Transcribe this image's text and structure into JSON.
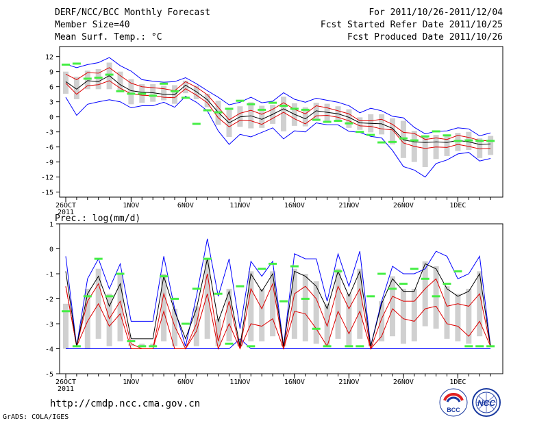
{
  "header": {
    "title": "DERF/NCC/BCC Monthly Forecast",
    "member_size": "Member Size=40",
    "variable": "Mean Surf. Temp.: °C",
    "period": "For 2011/10/26-2011/12/04",
    "fcst_started": "Fcst Started Refer Date 2011/10/25",
    "fcst_produced": "Fcst Produced Date 2011/10/26"
  },
  "footer": {
    "url": "http://cmdp.ncc.cma.gov.cn",
    "grads": "GrADS: COLA/IGES"
  },
  "logos": {
    "bcc_text": "BCC",
    "ncc_text": "NCC"
  },
  "colors": {
    "max_line": "#0000ff",
    "min_line": "#0000ff",
    "mean_line": "#000000",
    "spread_line": "#dd0000",
    "obs_marker": "#44ee44",
    "box": "#d0d0d0"
  },
  "chart_data": [
    {
      "type": "line",
      "title": "Mean Surf. Temp.: °C",
      "x_labels": [
        "26OCT",
        "1NOV",
        "6NOV",
        "11NOV",
        "16NOV",
        "21NOV",
        "26NOV",
        "1DEC"
      ],
      "x_label_days": [
        0,
        6,
        11,
        16,
        21,
        26,
        31,
        36
      ],
      "x_sublabel": "2011",
      "ylim": [
        -16,
        14
      ],
      "yticks": [
        -15,
        -12,
        -9,
        -6,
        -3,
        0,
        3,
        6,
        9,
        12
      ],
      "x": [
        0,
        1,
        2,
        3,
        4,
        5,
        6,
        7,
        8,
        9,
        10,
        11,
        12,
        13,
        14,
        15,
        16,
        17,
        18,
        19,
        20,
        21,
        22,
        23,
        24,
        25,
        26,
        27,
        28,
        29,
        30,
        31,
        32,
        33,
        34,
        35,
        36,
        37,
        38,
        39
      ],
      "series": [
        {
          "name": "max",
          "values": [
            10.5,
            9.8,
            10.4,
            10.8,
            11.8,
            10.2,
            9.1,
            7.4,
            7.1,
            6.9,
            7.0,
            7.8,
            6.6,
            5.2,
            3.9,
            2.4,
            2.9,
            3.9,
            2.8,
            3.1,
            4.8,
            3.5,
            2.9,
            3.7,
            3.3,
            2.9,
            2.2,
            0.8,
            1.7,
            1.2,
            0.1,
            -0.2,
            -2.1,
            -3.4,
            -2.9,
            -2.8,
            -2.2,
            -2.4,
            -3.8,
            -3.2
          ]
        },
        {
          "name": "spread_high",
          "values": [
            8.5,
            7.4,
            8.8,
            8.7,
            9.8,
            8.2,
            6.7,
            6.0,
            5.8,
            5.6,
            5.2,
            7.0,
            5.9,
            4.4,
            1.9,
            -0.6,
            0.7,
            1.3,
            0.5,
            1.5,
            2.8,
            1.5,
            0.6,
            2.2,
            1.8,
            1.2,
            0.6,
            -0.8,
            -0.8,
            -0.5,
            -1.5,
            -3.1,
            -3.3,
            -4.5,
            -4.2,
            -4.5,
            -3.7,
            -4.1,
            -4.7,
            -4.8
          ]
        },
        {
          "name": "mean",
          "values": [
            7.0,
            5.5,
            7.2,
            7.0,
            8.2,
            6.4,
            5.2,
            4.9,
            4.8,
            4.5,
            4.4,
            6.3,
            5.0,
            3.4,
            0.9,
            -1.2,
            0.0,
            0.2,
            -0.5,
            0.5,
            1.6,
            0.5,
            -0.4,
            1.2,
            0.9,
            0.6,
            -0.1,
            -1.2,
            -1.3,
            -1.4,
            -2.3,
            -4.6,
            -5.0,
            -5.1,
            -5.0,
            -5.1,
            -4.7,
            -5.0,
            -5.5,
            -5.4
          ]
        },
        {
          "name": "spread_low",
          "values": [
            6.7,
            4.5,
            6.2,
            6.4,
            7.2,
            5.7,
            4.6,
            4.3,
            4.2,
            3.9,
            3.8,
            5.6,
            4.3,
            2.8,
            -0.2,
            -2.0,
            -0.7,
            -0.8,
            -1.5,
            -0.3,
            0.9,
            -0.4,
            -1.4,
            0.2,
            0.3,
            -0.1,
            -0.8,
            -1.8,
            -1.9,
            -2.4,
            -2.6,
            -5.2,
            -5.9,
            -6.3,
            -6.0,
            -6.1,
            -5.5,
            -5.9,
            -6.4,
            -6.3
          ]
        },
        {
          "name": "min",
          "values": [
            3.9,
            0.3,
            2.5,
            3.0,
            3.4,
            3.0,
            1.8,
            2.2,
            2.2,
            2.9,
            1.9,
            4.1,
            2.9,
            1.2,
            -2.8,
            -5.5,
            -3.5,
            -4.0,
            -3.1,
            -2.2,
            -4.4,
            -2.8,
            -3.0,
            -1.2,
            -1.6,
            -1.6,
            -2.9,
            -3.1,
            -3.9,
            -4.2,
            -6.7,
            -9.9,
            -10.6,
            -12.0,
            -9.3,
            -8.6,
            -7.4,
            -7.1,
            -8.8,
            -8.3
          ]
        },
        {
          "name": "box_top",
          "values": [
            9.0,
            8.0,
            9.2,
            9.5,
            10.8,
            9.0,
            7.5,
            6.5,
            6.5,
            6.2,
            6.3,
            7.2,
            6.2,
            4.6,
            3.2,
            1.6,
            2.1,
            2.9,
            2.2,
            2.4,
            4.0,
            2.7,
            1.9,
            2.8,
            2.6,
            2.1,
            1.5,
            -0.1,
            0.5,
            0.5,
            -0.3,
            -0.8,
            -2.8,
            -4.0,
            -3.6,
            -3.5,
            -3.2,
            -3.0,
            -4.3,
            -3.8
          ]
        },
        {
          "name": "box_bottom",
          "values": [
            4.6,
            3.5,
            5.5,
            5.5,
            5.5,
            4.9,
            2.5,
            2.8,
            3.0,
            3.3,
            2.6,
            4.7,
            3.5,
            1.9,
            -1.6,
            -4.0,
            -2.0,
            -2.3,
            -2.2,
            -1.4,
            -2.9,
            -1.8,
            -1.9,
            -0.5,
            -0.8,
            -0.9,
            -2.2,
            -2.6,
            -3.1,
            -3.5,
            -5.5,
            -8.2,
            -9.0,
            -10.0,
            -8.4,
            -7.8,
            -6.8,
            -6.6,
            -8.2,
            -7.6
          ]
        },
        {
          "name": "observed",
          "values": [
            10.4,
            10.6,
            7.6,
            7.8,
            8.4,
            5.1,
            4.6,
            4.6,
            4.2,
            6.6,
            5.1,
            3.8,
            -1.4,
            1.3,
            0.9,
            1.6,
            3.2,
            2.5,
            1.4,
            2.8,
            2.2,
            1.6,
            1.4,
            -0.6,
            -1.0,
            -0.8,
            -1.3,
            -3.0,
            -3.6,
            -5.1,
            -5.0,
            -4.3,
            -4.7,
            -3.9,
            -2.9,
            -3.7,
            -4.8,
            -4.7,
            -4.8,
            -4.8
          ]
        }
      ]
    },
    {
      "type": "line",
      "title": "Prec.: log(mm/d)",
      "x_labels": [
        "26OCT",
        "1NOV",
        "6NOV",
        "11NOV",
        "16NOV",
        "21NOV",
        "26NOV",
        "1DEC"
      ],
      "x_label_days": [
        0,
        6,
        11,
        16,
        21,
        26,
        31,
        36
      ],
      "x_sublabel": "2011",
      "ylim": [
        -5,
        1
      ],
      "yticks": [
        -5,
        -4,
        -3,
        -2,
        -1,
        0,
        1
      ],
      "x": [
        0,
        1,
        2,
        3,
        4,
        5,
        6,
        7,
        8,
        9,
        10,
        11,
        12,
        13,
        14,
        15,
        16,
        17,
        18,
        19,
        20,
        21,
        22,
        23,
        24,
        25,
        26,
        27,
        28,
        29,
        30,
        31,
        32,
        33,
        34,
        35,
        36,
        37,
        38,
        39
      ],
      "series": [
        {
          "name": "max",
          "values": [
            -0.3,
            -3.9,
            -1.2,
            -0.4,
            -1.6,
            -0.6,
            -2.9,
            -2.9,
            -2.9,
            -0.3,
            -2.4,
            -3.9,
            -1.9,
            0.4,
            -1.9,
            -0.4,
            -3.2,
            -0.5,
            -1.1,
            -0.5,
            -3.9,
            -0.2,
            -0.4,
            -0.4,
            -2.1,
            -0.2,
            -1.5,
            -0.1,
            -3.9,
            -2.1,
            -0.7,
            -1.0,
            -1.0,
            -0.8,
            -0.1,
            -0.3,
            -1.2,
            -1.0,
            -0.3,
            -3.9
          ]
        },
        {
          "name": "mean",
          "values": [
            -0.9,
            -3.9,
            -1.8,
            -1.1,
            -2.3,
            -1.4,
            -3.6,
            -3.6,
            -3.6,
            -1.1,
            -2.5,
            -3.6,
            -2.4,
            -0.4,
            -2.9,
            -1.7,
            -3.9,
            -1.0,
            -1.7,
            -1.0,
            -3.9,
            -0.9,
            -1.1,
            -1.5,
            -2.4,
            -0.9,
            -1.9,
            -0.9,
            -3.9,
            -2.2,
            -1.2,
            -1.7,
            -1.7,
            -0.6,
            -0.8,
            -1.6,
            -1.9,
            -1.7,
            -1.0,
            -3.9
          ]
        },
        {
          "name": "spread_high",
          "values": [
            -1.5,
            -3.9,
            -2.1,
            -1.4,
            -2.8,
            -2.1,
            -3.8,
            -4.0,
            -4.0,
            -1.8,
            -3.1,
            -4.0,
            -3.0,
            -1.0,
            -3.7,
            -2.1,
            -4.0,
            -1.6,
            -2.4,
            -1.4,
            -4.0,
            -1.8,
            -1.5,
            -2.0,
            -3.1,
            -1.5,
            -2.4,
            -1.6,
            -4.0,
            -2.8,
            -1.9,
            -2.1,
            -2.1,
            -1.6,
            -1.2,
            -2.3,
            -2.2,
            -2.3,
            -1.8,
            -3.9
          ]
        },
        {
          "name": "spread_low",
          "values": [
            -1.5,
            -3.9,
            -2.9,
            -2.2,
            -3.1,
            -2.6,
            -4.0,
            -4.0,
            -4.0,
            -2.5,
            -4.0,
            -4.0,
            -3.3,
            -1.8,
            -4.0,
            -3.0,
            -4.0,
            -3.0,
            -3.1,
            -2.8,
            -4.0,
            -2.5,
            -2.6,
            -3.2,
            -3.9,
            -2.5,
            -3.4,
            -2.5,
            -4.0,
            -3.5,
            -2.4,
            -2.8,
            -2.9,
            -2.4,
            -2.3,
            -3.0,
            -3.1,
            -3.5,
            -2.9,
            -3.9
          ]
        },
        {
          "name": "min",
          "values": [
            -4.0,
            -4.0,
            -4.0,
            -4.0,
            -4.0,
            -4.0,
            -4.0,
            -4.0,
            -4.0,
            -4.0,
            -4.0,
            -4.0,
            -4.0,
            -4.0,
            -4.0,
            -4.0,
            -3.6,
            -4.0,
            -4.0,
            -4.0,
            -4.0,
            -4.0,
            -4.0,
            -4.0,
            -4.0,
            -4.0,
            -4.0,
            -4.0,
            -4.0,
            -4.0,
            -4.0,
            -4.0,
            -4.0,
            -4.0,
            -4.0,
            -4.0,
            -4.0,
            -4.0,
            -4.0,
            -4.0
          ]
        },
        {
          "name": "box_top",
          "values": [
            -2.2,
            -3.9,
            -1.6,
            -0.8,
            -1.8,
            -1.0,
            -3.8,
            -3.8,
            -3.8,
            -1.0,
            -2.4,
            -3.8,
            -2.3,
            -0.4,
            -2.8,
            -1.6,
            -3.6,
            -0.9,
            -1.6,
            -0.9,
            -3.8,
            -0.8,
            -1.0,
            -1.3,
            -2.2,
            -0.8,
            -1.8,
            -0.8,
            -3.8,
            -2.1,
            -1.1,
            -1.6,
            -1.6,
            -0.5,
            -0.7,
            -1.5,
            -1.8,
            -1.6,
            -0.9,
            -3.9
          ]
        },
        {
          "name": "box_bottom",
          "values": [
            -4.0,
            -3.9,
            -4.0,
            -3.6,
            -3.9,
            -3.7,
            -3.9,
            -3.9,
            -3.9,
            -3.7,
            -3.9,
            -3.9,
            -3.9,
            -3.6,
            -3.9,
            -3.7,
            -3.9,
            -3.7,
            -3.7,
            -3.5,
            -3.9,
            -3.6,
            -3.7,
            -3.8,
            -3.9,
            -3.6,
            -3.9,
            -3.6,
            -3.9,
            -3.7,
            -3.5,
            -3.8,
            -3.7,
            -3.1,
            -3.2,
            -3.6,
            -3.7,
            -3.8,
            -3.5,
            -3.9
          ]
        },
        {
          "name": "observed",
          "values": [
            -2.5,
            -3.9,
            -1.9,
            -0.4,
            -1.9,
            -1.0,
            -3.7,
            -3.9,
            -3.9,
            -1.1,
            -2.0,
            -3.0,
            -1.6,
            -0.4,
            -1.8,
            -3.8,
            -1.5,
            -3.9,
            -0.8,
            -0.6,
            -2.1,
            -0.7,
            -2.0,
            -3.2,
            -3.9,
            -0.9,
            -3.9,
            -3.9,
            -1.9,
            -1.0,
            -1.6,
            -1.4,
            -0.8,
            -1.2,
            -1.9,
            -1.4,
            -0.9,
            -3.9,
            -3.9,
            -3.9
          ]
        }
      ]
    }
  ]
}
